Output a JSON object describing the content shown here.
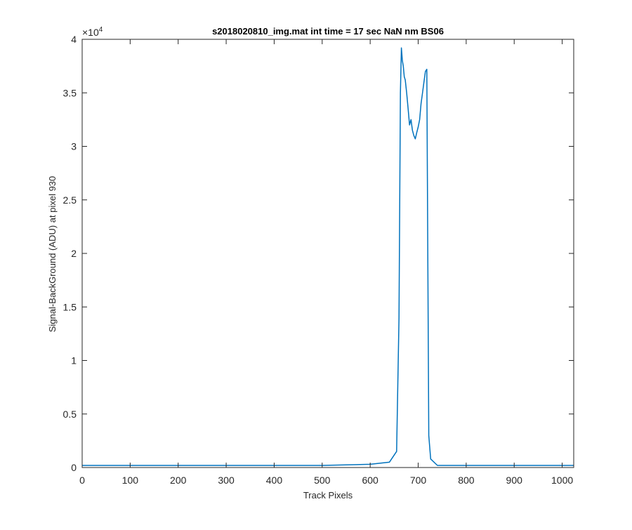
{
  "chart_data": {
    "type": "line",
    "title": "s2018020810_img.mat int time = 17 sec  NaN nm BS06",
    "xlabel": "Track Pixels",
    "ylabel": "Signal-BackGround (ADU) at pixel 930",
    "xlim": [
      0,
      1024
    ],
    "ylim": [
      0,
      40000
    ],
    "x_ticks": [
      0,
      100,
      200,
      300,
      400,
      500,
      600,
      700,
      800,
      900,
      1000
    ],
    "y_tick_values": [
      0,
      5000,
      10000,
      15000,
      20000,
      25000,
      30000,
      35000,
      40000
    ],
    "y_tick_labels": [
      "0",
      "0.5",
      "1",
      "1.5",
      "2",
      "2.5",
      "3",
      "3.5",
      "4"
    ],
    "y_exponent_label": "×10",
    "y_exponent_power": "4",
    "grid": false,
    "line_color": "#0072BD",
    "series": [
      {
        "x": [
          0,
          100,
          200,
          300,
          400,
          500,
          600,
          640,
          655,
          660,
          663,
          665,
          667,
          669,
          671,
          673,
          676,
          679,
          682,
          685,
          688,
          691,
          694,
          697,
          700,
          703,
          706,
          709,
          712,
          715,
          718,
          720,
          722,
          726,
          740,
          800,
          900,
          1024
        ],
        "y": [
          200,
          200,
          200,
          200,
          200,
          200,
          300,
          500,
          1500,
          14000,
          35000,
          39200,
          38000,
          37500,
          36500,
          36200,
          35000,
          33500,
          32000,
          32500,
          31500,
          31000,
          30700,
          31300,
          31800,
          32500,
          34000,
          35000,
          36000,
          37000,
          37200,
          20000,
          3000,
          800,
          200,
          200,
          200,
          200
        ]
      }
    ]
  }
}
